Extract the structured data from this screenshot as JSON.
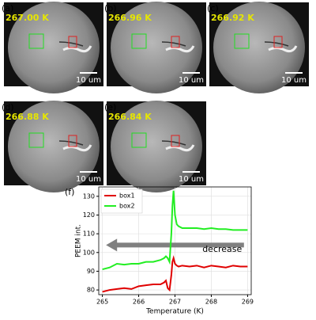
{
  "panels": [
    {
      "label": "(a)",
      "temperature": "267.00 K",
      "scale": "10 um"
    },
    {
      "label": "(b)",
      "temperature": "266.96 K",
      "scale": "10 um"
    },
    {
      "label": "(c)",
      "temperature": "266.92 K",
      "scale": "10 um"
    },
    {
      "label": "(d)",
      "temperature": "266.88 K",
      "scale": "10 um"
    },
    {
      "label": "(e)",
      "temperature": "266.84 K",
      "scale": "10 um"
    }
  ],
  "chart_data": {
    "type": "line",
    "panel_label": "(f)",
    "x_label": "Temperature (K)",
    "y_label": "PEEM int.",
    "xlim": [
      264.9,
      269.1
    ],
    "xticks": [
      265,
      266,
      267,
      268,
      269
    ],
    "ylim": [
      77.5,
      135
    ],
    "yticks": [
      80,
      90,
      100,
      110,
      120,
      130
    ],
    "grid": true,
    "legend": "upper left",
    "x": [
      265,
      265.2,
      265.4,
      265.6,
      265.8,
      266,
      266.2,
      266.4,
      266.6,
      266.7,
      266.75,
      266.8,
      266.85,
      266.9,
      266.93,
      266.96,
      267,
      267.05,
      267.1,
      267.2,
      267.4,
      267.6,
      267.8,
      268,
      268.2,
      268.4,
      268.6,
      268.8,
      269
    ],
    "series": [
      {
        "name": "box1",
        "color": "#e00000",
        "values": [
          79,
          80,
          80.5,
          81,
          80.5,
          82,
          82.5,
          83,
          83,
          84,
          85,
          81,
          80,
          88,
          95,
          97,
          94,
          93,
          92.5,
          93,
          92.5,
          93,
          92,
          93,
          92.5,
          92,
          93,
          92.5,
          92.5
        ]
      },
      {
        "name": "box2",
        "color": "#22ee22",
        "values": [
          91,
          92,
          94,
          93.5,
          94,
          94,
          95,
          95,
          96,
          97,
          98,
          97,
          95,
          110,
          125,
          133,
          120,
          115,
          114,
          113,
          113,
          113,
          112.5,
          113,
          112.5,
          112.5,
          112,
          112,
          112
        ]
      }
    ],
    "annotation": {
      "text": "decrease",
      "from": [
        268.9,
        104
      ],
      "to": [
        265.1,
        104
      ],
      "text_at": [
        268.3,
        101.5
      ],
      "color": "#808080"
    }
  }
}
